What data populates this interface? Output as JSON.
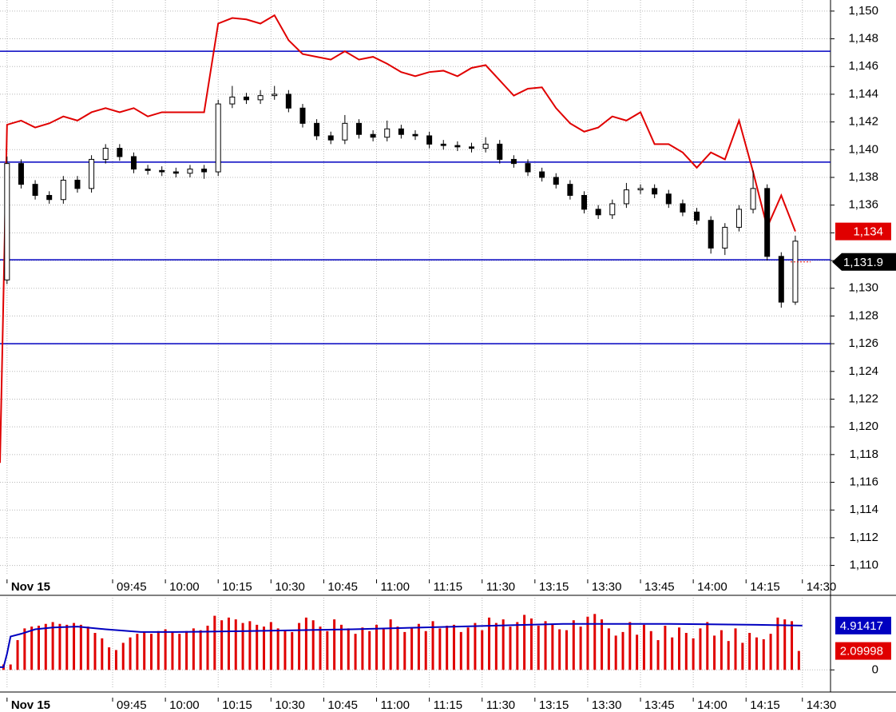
{
  "chart_data": [
    {
      "type": "candlestick",
      "x": [
        2,
        6,
        10,
        14,
        18,
        22,
        26,
        30,
        34,
        38,
        42,
        46,
        50,
        54,
        58,
        62,
        66,
        70,
        74,
        78,
        82,
        86,
        90,
        94,
        98,
        102,
        106,
        110,
        114,
        118,
        122,
        126,
        130,
        134,
        138,
        142,
        146,
        150,
        154,
        158,
        162,
        166,
        170,
        174,
        178,
        182,
        186,
        190,
        194,
        198,
        202,
        206,
        210,
        214,
        218,
        222,
        226
      ],
      "open": [
        1130.6,
        1139,
        1137.5,
        1136.7,
        1136.4,
        1137.8,
        1137.2,
        1139.3,
        1140.1,
        1139.5,
        1138.6,
        1138.5,
        1138.4,
        1138.3,
        1138.6,
        1138.4,
        1143.3,
        1143.8,
        1143.6,
        1143.9,
        1144,
        1143,
        1141.9,
        1141,
        1140.7,
        1141.9,
        1141.1,
        1140.9,
        1141.5,
        1141.1,
        1141,
        1140.4,
        1140.3,
        1140.2,
        1140.1,
        1140.4,
        1139.3,
        1139,
        1138.4,
        1138,
        1137.5,
        1136.7,
        1135.7,
        1135.3,
        1136.1,
        1137.1,
        1137.2,
        1136.8,
        1136.1,
        1135.5,
        1134.9,
        1132.9,
        1134.4,
        1135.7,
        1137.2,
        1132.3,
        1129
      ],
      "high": [
        1139.5,
        1139.3,
        1137.8,
        1137,
        1138.1,
        1138.1,
        1139.6,
        1140.4,
        1140.4,
        1139.8,
        1138.9,
        1138.8,
        1138.7,
        1138.9,
        1138.9,
        1143.6,
        1144.6,
        1144.1,
        1144.3,
        1144.6,
        1144.3,
        1143.3,
        1142.2,
        1141.3,
        1142.5,
        1142.2,
        1141.4,
        1142.1,
        1141.8,
        1141.4,
        1141.3,
        1140.7,
        1140.6,
        1140.5,
        1140.9,
        1140.7,
        1139.6,
        1139.3,
        1138.7,
        1138.3,
        1137.8,
        1137,
        1136,
        1136.4,
        1137.6,
        1137.5,
        1137.5,
        1137.1,
        1136.4,
        1135.8,
        1135.2,
        1134.7,
        1136,
        1138.5,
        1137.5,
        1132.6,
        1133.8
      ],
      "low": [
        1130.3,
        1137.2,
        1136.4,
        1136.1,
        1136.1,
        1136.9,
        1136.9,
        1139,
        1139.2,
        1138.3,
        1138.2,
        1138.1,
        1138,
        1138,
        1137.9,
        1138.1,
        1143,
        1143.3,
        1143.3,
        1143.6,
        1142.7,
        1141.6,
        1140.7,
        1140.4,
        1140.4,
        1140.8,
        1140.6,
        1140.6,
        1140.8,
        1140.7,
        1140.1,
        1140,
        1139.9,
        1139.8,
        1139.8,
        1139,
        1138.7,
        1138.1,
        1137.7,
        1137.2,
        1136.4,
        1135.4,
        1135,
        1135,
        1135.8,
        1136.8,
        1136.5,
        1135.8,
        1135.2,
        1134.6,
        1132.5,
        1132.4,
        1134.1,
        1135.4,
        1132,
        1128.6,
        1128.8
      ],
      "close": [
        1139,
        1137.5,
        1136.7,
        1136.4,
        1137.8,
        1137.2,
        1139.3,
        1140.1,
        1139.5,
        1138.6,
        1138.5,
        1138.4,
        1138.3,
        1138.6,
        1138.4,
        1143.3,
        1143.8,
        1143.6,
        1143.9,
        1144,
        1143,
        1141.9,
        1141,
        1140.7,
        1141.9,
        1141.1,
        1140.9,
        1141.5,
        1141.1,
        1141,
        1140.4,
        1140.3,
        1140.2,
        1140.1,
        1140.4,
        1139.3,
        1139,
        1138.4,
        1138,
        1137.5,
        1136.7,
        1135.7,
        1135.3,
        1136.1,
        1137.1,
        1137.2,
        1136.8,
        1136.1,
        1135.5,
        1134.9,
        1132.9,
        1134.4,
        1135.7,
        1137.2,
        1132.3,
        1129,
        1133.4
      ],
      "line": {
        "color": "#e00000",
        "x": [
          0,
          2,
          6,
          10,
          14,
          18,
          22,
          26,
          30,
          34,
          38,
          42,
          46,
          50,
          54,
          58,
          62,
          66,
          70,
          74,
          78,
          82,
          86,
          90,
          94,
          98,
          102,
          106,
          110,
          114,
          118,
          122,
          126,
          130,
          134,
          138,
          142,
          146,
          150,
          154,
          158,
          162,
          166,
          170,
          174,
          178,
          182,
          186,
          190,
          194,
          198,
          202,
          206,
          210,
          214,
          218,
          222,
          226
        ],
        "values": [
          1117.4,
          1141.8,
          1142.1,
          1141.6,
          1141.9,
          1142.4,
          1142.1,
          1142.7,
          1143,
          1142.7,
          1143,
          1142.4,
          1142.7,
          1142.7,
          1142.7,
          1142.7,
          1149.1,
          1149.5,
          1149.4,
          1149.1,
          1149.7,
          1147.9,
          1146.9,
          1146.7,
          1146.5,
          1147.1,
          1146.5,
          1146.7,
          1146.2,
          1145.6,
          1145.3,
          1145.6,
          1145.7,
          1145.3,
          1145.9,
          1146.1,
          1145,
          1143.9,
          1144.4,
          1144.5,
          1143,
          1141.9,
          1141.3,
          1141.6,
          1142.4,
          1142.1,
          1142.7,
          1140.4,
          1140.4,
          1139.8,
          1138.7,
          1139.8,
          1139.3,
          1142.1,
          1138.4,
          1134.4,
          1136.7,
          1134.1
        ]
      },
      "levels": {
        "color": "#0000c0",
        "values": [
          1147.1,
          1139.1,
          1132.05,
          1126
        ]
      },
      "markers": [
        {
          "value": 1134.1,
          "label": "1,134",
          "color": "#e00000"
        },
        {
          "value": 1131.9,
          "label": "1,131.9",
          "color": "#000000"
        }
      ],
      "xlim": [
        0,
        236
      ],
      "xticks": [
        {
          "value": 2,
          "label": "Nov 15"
        },
        {
          "value": 32,
          "label": "09:45"
        },
        {
          "value": 47,
          "label": "10:00"
        },
        {
          "value": 62,
          "label": "10:15"
        },
        {
          "value": 77,
          "label": "10:30"
        },
        {
          "value": 92,
          "label": "10:45"
        },
        {
          "value": 107,
          "label": "11:00"
        },
        {
          "value": 122,
          "label": "11:15"
        },
        {
          "value": 137,
          "label": "11:30"
        },
        {
          "value": 152,
          "label": "13:15"
        },
        {
          "value": 167,
          "label": "13:30"
        },
        {
          "value": 182,
          "label": "13:45"
        },
        {
          "value": 197,
          "label": "14:00"
        },
        {
          "value": 212,
          "label": "14:15"
        },
        {
          "value": 228,
          "label": "14:30"
        }
      ],
      "ylim": [
        1109.4,
        1150.8
      ],
      "yticks": [
        {
          "value": 1110,
          "label": "1,110"
        },
        {
          "value": 1112,
          "label": "1,112"
        },
        {
          "value": 1114,
          "label": "1,114"
        },
        {
          "value": 1116,
          "label": "1,116"
        },
        {
          "value": 1118,
          "label": "1,118"
        },
        {
          "value": 1120,
          "label": "1,120"
        },
        {
          "value": 1122,
          "label": "1,122"
        },
        {
          "value": 1124,
          "label": "1,124"
        },
        {
          "value": 1126,
          "label": "1,126"
        },
        {
          "value": 1128,
          "label": "1,128"
        },
        {
          "value": 1130,
          "label": "1,130"
        },
        {
          "value": 1132,
          "label": "1,132"
        },
        {
          "value": 1134,
          "label": "1,134"
        },
        {
          "value": 1136,
          "label": "1,136"
        },
        {
          "value": 1138,
          "label": "1,138"
        },
        {
          "value": 1140,
          "label": "1,140"
        },
        {
          "value": 1142,
          "label": "1,142"
        },
        {
          "value": 1144,
          "label": "1,144"
        },
        {
          "value": 1146,
          "label": "1,146"
        },
        {
          "value": 1148,
          "label": "1,148"
        },
        {
          "value": 1150,
          "label": "1,150"
        }
      ],
      "grid": true
    },
    {
      "type": "volume",
      "x": [
        1,
        3,
        5,
        7,
        9,
        11,
        13,
        15,
        17,
        19,
        21,
        23,
        25,
        27,
        29,
        31,
        33,
        35,
        37,
        39,
        41,
        43,
        45,
        47,
        49,
        51,
        53,
        55,
        57,
        59,
        61,
        63,
        65,
        67,
        69,
        71,
        73,
        75,
        77,
        79,
        81,
        83,
        85,
        87,
        89,
        91,
        93,
        95,
        97,
        99,
        101,
        103,
        105,
        107,
        109,
        111,
        113,
        115,
        117,
        119,
        121,
        123,
        125,
        127,
        129,
        131,
        133,
        135,
        137,
        139,
        141,
        143,
        145,
        147,
        149,
        151,
        153,
        155,
        157,
        159,
        161,
        163,
        165,
        167,
        169,
        171,
        173,
        175,
        177,
        179,
        181,
        183,
        185,
        187,
        189,
        191,
        193,
        195,
        197,
        199,
        201,
        203,
        205,
        207,
        209,
        211,
        213,
        215,
        217,
        219,
        221,
        223,
        225,
        227
      ],
      "values": [
        0.6,
        0.6,
        3.3,
        4.6,
        4.8,
        4.9,
        5.1,
        5.3,
        5.1,
        5.0,
        5.2,
        5.0,
        4.8,
        4.1,
        3.5,
        2.5,
        2.2,
        3.0,
        3.6,
        4.0,
        4.2,
        4.0,
        4.3,
        4.5,
        4.2,
        4.0,
        4.3,
        4.6,
        4.4,
        4.9,
        6.0,
        5.5,
        5.8,
        5.6,
        5.2,
        5.4,
        5.0,
        4.8,
        5.3,
        4.6,
        4.4,
        4.2,
        5.2,
        5.8,
        5.5,
        4.8,
        4.3,
        5.6,
        5.0,
        4.6,
        4.0,
        4.7,
        4.3,
        5.0,
        4.5,
        5.6,
        4.8,
        4.2,
        4.6,
        5.1,
        4.3,
        5.4,
        4.6,
        4.9,
        5.0,
        4.2,
        4.7,
        5.2,
        4.4,
        5.8,
        5.2,
        5.6,
        4.8,
        5.3,
        6.1,
        5.7,
        4.9,
        5.4,
        5.0,
        4.5,
        4.4,
        5.5,
        4.8,
        5.9,
        6.2,
        5.6,
        4.6,
        3.8,
        4.2,
        5.3,
        3.9,
        5.0,
        4.3,
        3.3,
        4.9,
        3.6,
        4.7,
        4.1,
        3.5,
        4.6,
        5.3,
        3.8,
        4.4,
        3.2,
        4.6,
        3.0,
        4.1,
        3.6,
        3.4,
        4.0,
        5.8,
        5.6,
        5.4,
        2.09998
      ],
      "color": "#e00000",
      "average": {
        "color": "#0000c0",
        "x": [
          0,
          1,
          2,
          3,
          6,
          10,
          15,
          22,
          30,
          40,
          50,
          70,
          100,
          130,
          160,
          190,
          215,
          228
        ],
        "values": [
          0.3,
          0.3,
          1.8,
          3.7,
          4.0,
          4.5,
          4.7,
          4.8,
          4.5,
          4.2,
          4.2,
          4.3,
          4.5,
          4.8,
          5.1,
          5.1,
          5.0,
          4.91417
        ]
      },
      "xlim": [
        0,
        236
      ],
      "xticks": [
        {
          "value": 2,
          "label": "Nov 15"
        },
        {
          "value": 32,
          "label": "09:45"
        },
        {
          "value": 47,
          "label": "10:00"
        },
        {
          "value": 62,
          "label": "10:15"
        },
        {
          "value": 77,
          "label": "10:30"
        },
        {
          "value": 92,
          "label": "10:45"
        },
        {
          "value": 107,
          "label": "11:00"
        },
        {
          "value": 122,
          "label": "11:15"
        },
        {
          "value": 137,
          "label": "11:30"
        },
        {
          "value": 152,
          "label": "13:15"
        },
        {
          "value": 167,
          "label": "13:30"
        },
        {
          "value": 182,
          "label": "13:45"
        },
        {
          "value": 197,
          "label": "14:00"
        },
        {
          "value": 212,
          "label": "14:15"
        },
        {
          "value": 228,
          "label": "14:30"
        }
      ],
      "ylim": [
        -2.1,
        8
      ],
      "yticks": [
        0
      ],
      "grid": true
    }
  ]
}
